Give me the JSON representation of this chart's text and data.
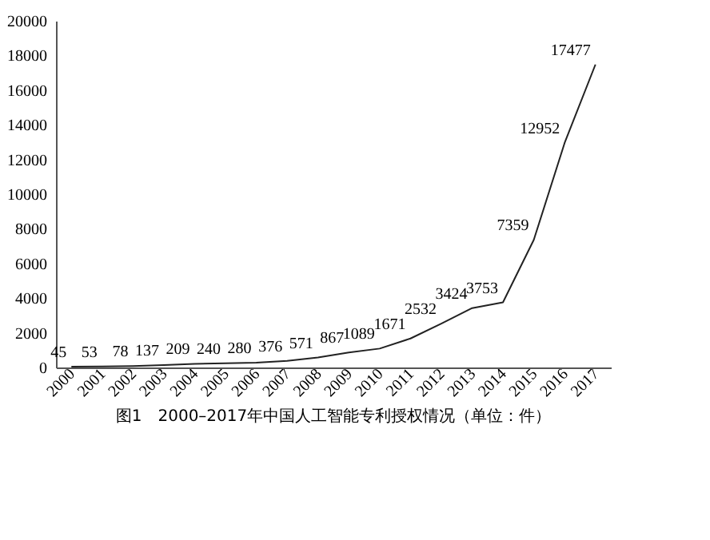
{
  "chart_data": {
    "type": "line",
    "categories": [
      "2000",
      "2001",
      "2002",
      "2003",
      "2004",
      "2005",
      "2006",
      "2007",
      "2008",
      "2009",
      "2010",
      "2011",
      "2012",
      "2013",
      "2014",
      "2015",
      "2016",
      "2017"
    ],
    "series": [
      {
        "color": "#222222",
        "values": [
          45,
          53,
          78,
          137,
          209,
          240,
          280,
          376,
          571,
          867,
          1089,
          1671,
          2532,
          3424,
          3753,
          7359,
          12952,
          17477
        ]
      }
    ],
    "ylim": [
      0,
      20000
    ],
    "yticks": [
      0,
      2000,
      4000,
      6000,
      8000,
      10000,
      12000,
      14000,
      16000,
      18000,
      20000
    ],
    "data_labels": true,
    "grid": false,
    "marker": "none",
    "line_style": "solid",
    "annotations": [
      "图1　2000–2017年中国人工智能专利授权情况（单位：件）"
    ]
  }
}
